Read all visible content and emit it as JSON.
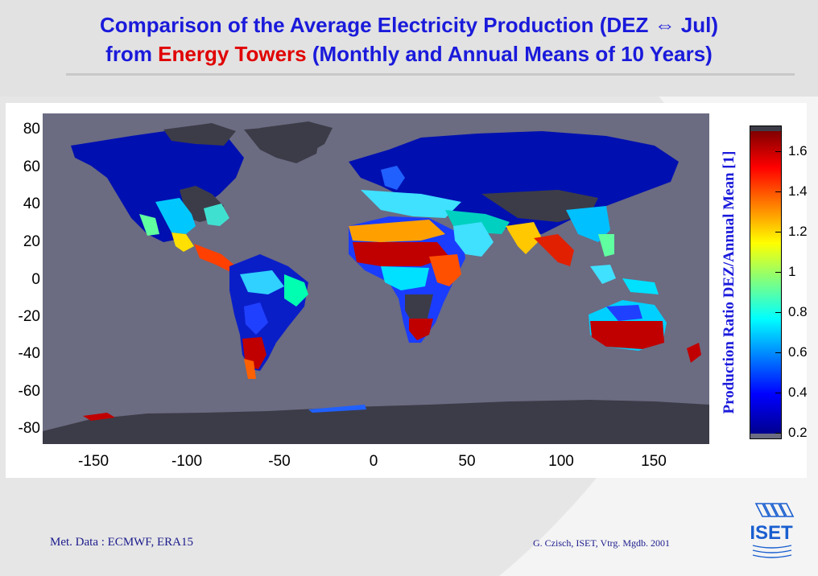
{
  "title": {
    "line1": "Comparison of the Average Electricity Production (DEZ ⇔ Jul)",
    "line2_pre": "from ",
    "line2_red": "Energy Towers",
    "line2_post": " (Monthly and Annual Means of 10 Years)"
  },
  "map": {
    "type": "world map heatmap",
    "y_ticks": [
      "80",
      "60",
      "40",
      "20",
      "0",
      "-20",
      "-40",
      "-60",
      "-80"
    ],
    "x_ticks": [
      "-150",
      "-100",
      "-50",
      "0",
      "50",
      "100",
      "150"
    ],
    "colorbar": {
      "label": "Production Ratio  DEZ/Annual Mean  [1]",
      "ticks": [
        "1.6",
        "1.4",
        "1.2",
        "1",
        "0.8",
        "0.6",
        "0.4",
        "0.2"
      ],
      "scale": "jet",
      "range": [
        0.2,
        1.75
      ]
    },
    "colors": {
      "ocean": "#6b6b82",
      "no_data": "#3c3c48",
      "low": "#00008f",
      "high": "#8f0000"
    }
  },
  "footer": {
    "left": "Met. Data : ECMWF, ERA15",
    "right": "G. Czisch, ISET, Vtrg. Mgdb. 2001",
    "logo_text": "ISET"
  }
}
